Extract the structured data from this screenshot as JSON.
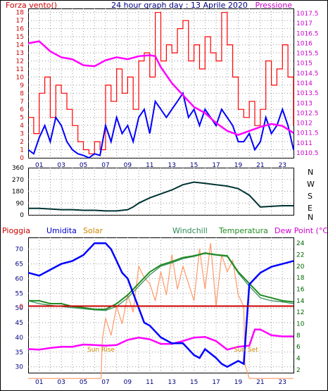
{
  "panel1": {
    "left_label": "Forza vento()",
    "title": "24 hour graph day : 13 Aprile 2020",
    "right_label": "Pressione"
  },
  "panel2": {
    "compass": [
      "N",
      "W",
      "S",
      "E",
      "N"
    ]
  },
  "panel3": {
    "labels": {
      "rain": "Pioggia",
      "hum": "Umidita",
      "solar": "Solar",
      "wc": "Windchill",
      "temp": "Temperatura",
      "dew": "Dew Point (°C)"
    },
    "rain_value": "0",
    "sunrise": "Sun Rise",
    "sunset": "Sun Set"
  },
  "colors": {
    "wind": "#ff0000",
    "gust": "#ff0000",
    "windavg": "#0000ff",
    "pressure": "#ff00ff",
    "direction": "#003333",
    "humidity": "#0000ff",
    "temperature": "#228b22",
    "windchill": "#2e8b57",
    "dewpoint": "#ff00ff",
    "solar": "#ff9966",
    "rain": "#cc0000"
  },
  "chart_data": [
    {
      "type": "line",
      "x_ticks": [
        "01",
        "03",
        "05",
        "07",
        "09",
        "11",
        "13",
        "15",
        "17",
        "19",
        "21",
        "23"
      ],
      "left_ticks": [
        "0",
        "1",
        "2",
        "3",
        "4",
        "5",
        "6",
        "7",
        "8",
        "9",
        "10",
        "11",
        "12",
        "13",
        "14",
        "15",
        "16",
        "17",
        "18"
      ],
      "right_ticks": [
        "1010.5",
        "1011",
        "1011.5",
        "1012",
        "1012.5",
        "1013",
        "1013.5",
        "1014",
        "1014.5",
        "1015",
        "1015.5",
        "1016",
        "1016.5",
        "1017",
        "1017.5"
      ],
      "ylim_left": [
        0,
        18.5
      ],
      "ylim_right": [
        1010.25,
        1017.75
      ],
      "series": [
        {
          "name": "Pressione",
          "axis": "right",
          "x": [
            0,
            1,
            2,
            3,
            4,
            5,
            6,
            7,
            8,
            9,
            10,
            11,
            11.5,
            12,
            13,
            14,
            15,
            16,
            17,
            18,
            19,
            20,
            21,
            22,
            23,
            24
          ],
          "values": [
            1016,
            1016.1,
            1015.6,
            1015.3,
            1015.2,
            1014.9,
            1014.85,
            1015.15,
            1015.3,
            1015.2,
            1015.35,
            1015.4,
            1015.35,
            1014.8,
            1014.0,
            1013.4,
            1012.8,
            1012.5,
            1012.0,
            1011.6,
            1011.4,
            1011.6,
            1011.8,
            1011.95,
            1011.85,
            1011.5
          ]
        },
        {
          "name": "Wind average",
          "axis": "left",
          "x": [
            0,
            0.5,
            1,
            1.5,
            2,
            2.5,
            3,
            3.5,
            4,
            4.5,
            5,
            5.5,
            6,
            6.5,
            7,
            7.5,
            8,
            8.5,
            9,
            9.5,
            10,
            10.5,
            11,
            11.5,
            12,
            12.5,
            13,
            13.5,
            14,
            14.5,
            15,
            15.5,
            16,
            16.5,
            17,
            17.5,
            18,
            18.5,
            19,
            19.5,
            20,
            20.5,
            21,
            21.5,
            22,
            22.5,
            23,
            23.5,
            24
          ],
          "values": [
            1,
            0.5,
            2.5,
            4,
            2,
            5,
            4,
            2,
            1,
            0.5,
            0.3,
            0,
            0.5,
            0.3,
            4,
            2,
            5,
            3,
            4,
            2,
            5,
            6,
            3,
            7,
            6,
            5,
            6,
            7,
            8,
            5,
            6,
            4,
            6,
            5,
            4,
            6,
            5,
            4,
            2,
            2,
            3,
            1,
            2,
            5,
            3,
            4,
            6,
            4,
            1
          ]
        },
        {
          "name": "Wind gust",
          "axis": "left",
          "x": [
            0,
            0.5,
            1,
            1.5,
            2,
            2.5,
            3,
            3.5,
            4,
            4.5,
            5,
            5.5,
            6,
            6.5,
            7,
            7.5,
            8,
            8.5,
            9,
            9.5,
            10,
            10.5,
            11,
            11.5,
            12,
            12.5,
            13,
            13.5,
            14,
            14.5,
            15,
            15.5,
            16,
            16.5,
            17,
            17.5,
            18,
            18.5,
            19,
            19.5,
            20,
            20.5,
            21,
            21.5,
            22,
            22.5,
            23,
            23.5,
            24
          ],
          "values": [
            5,
            3,
            8,
            10,
            5,
            9,
            8,
            6,
            4,
            2,
            1,
            0.5,
            2,
            1,
            9,
            7,
            11,
            8,
            10,
            6,
            12,
            13,
            10,
            18,
            12,
            14,
            13,
            16,
            17,
            12,
            14,
            11,
            15,
            13,
            12,
            18,
            14,
            10,
            6,
            5,
            7,
            4,
            6,
            12,
            9,
            11,
            14,
            10,
            4
          ]
        },
        {
          "name": "Wind direction",
          "axis": "direction",
          "ylim": [
            0,
            360
          ],
          "x": [
            0,
            1,
            2,
            3,
            4,
            5,
            6,
            7,
            8,
            9,
            9.5,
            10,
            11,
            12,
            13,
            14,
            15,
            16,
            17,
            18,
            19,
            20,
            21,
            22,
            23,
            24
          ],
          "values": [
            50,
            50,
            45,
            40,
            40,
            35,
            35,
            30,
            30,
            40,
            60,
            90,
            130,
            160,
            190,
            230,
            250,
            240,
            230,
            220,
            200,
            150,
            60,
            65,
            70,
            70
          ]
        }
      ]
    },
    {
      "type": "line",
      "x_ticks": [
        "01",
        "03",
        "05",
        "07",
        "09",
        "11",
        "13",
        "15",
        "17",
        "19",
        "21",
        "23"
      ],
      "left_ticks": [
        "30",
        "35",
        "40",
        "45",
        "50",
        "55",
        "60",
        "65",
        "70"
      ],
      "right_ticks": [
        "2",
        "4",
        "6",
        "8",
        "10",
        "12",
        "14",
        "16",
        "18",
        "20",
        "22",
        "24"
      ],
      "ylim_left": [
        28,
        74
      ],
      "ylim_right": [
        1.5,
        25
      ],
      "series": [
        {
          "name": "Umidita",
          "axis": "left",
          "x": [
            0,
            1,
            2,
            3,
            4,
            5,
            6,
            7,
            7.5,
            8,
            8.5,
            9,
            9.5,
            10,
            10.5,
            11,
            12,
            13,
            14,
            15,
            15.5,
            16,
            17,
            17.5,
            18,
            18.5,
            19,
            19.5,
            20,
            20.5,
            21,
            22,
            23,
            24
          ],
          "values": [
            62,
            61,
            63,
            65,
            66,
            68,
            72,
            72,
            70,
            66,
            62,
            60,
            55,
            50,
            45,
            44,
            40,
            38,
            38,
            34,
            33,
            36,
            33,
            31,
            30,
            31,
            32,
            31,
            58,
            60,
            62,
            64,
            65,
            66
          ]
        },
        {
          "name": "Temperatura",
          "axis": "right",
          "x": [
            0,
            1,
            2,
            3,
            4,
            5,
            6,
            7,
            8,
            9,
            10,
            11,
            12,
            13,
            14,
            15,
            16,
            17,
            18,
            19,
            20,
            21,
            22,
            23,
            24
          ],
          "values": [
            14,
            14,
            13.5,
            13.5,
            13,
            12.8,
            12.5,
            12.5,
            13.5,
            15,
            17,
            19,
            20.2,
            20.8,
            21.5,
            21.8,
            22.3,
            22,
            21.8,
            19,
            17,
            15,
            14.5,
            14,
            13.8
          ]
        },
        {
          "name": "Windchill",
          "axis": "right",
          "x": [
            0,
            1,
            2,
            3,
            4,
            5,
            6,
            7,
            8,
            9,
            10,
            11,
            12,
            13,
            14,
            15,
            16,
            17,
            18,
            19,
            20,
            21,
            22,
            23,
            24
          ],
          "values": [
            14,
            13.5,
            13.2,
            13,
            12.8,
            12.6,
            12.4,
            12.3,
            13,
            14.5,
            16.5,
            18.5,
            20,
            20.6,
            21.3,
            21.7,
            22.2,
            21.9,
            21.7,
            18.8,
            16.5,
            14.5,
            14,
            13.8,
            13.5
          ]
        },
        {
          "name": "Dew Point",
          "axis": "right",
          "x": [
            0,
            1,
            2,
            3,
            4,
            5,
            6,
            7,
            8,
            9,
            10,
            11,
            12,
            13,
            14,
            15,
            16,
            17,
            18,
            19,
            20,
            20.5,
            21,
            22,
            23,
            24
          ],
          "values": [
            5.6,
            5.5,
            5.8,
            6,
            6,
            6.4,
            6.3,
            6.2,
            6.3,
            7.2,
            7.6,
            7.3,
            6.5,
            6.5,
            7,
            7.6,
            7.7,
            7,
            5.5,
            6,
            6.2,
            9,
            9,
            8,
            7.8,
            7.8
          ]
        },
        {
          "name": "Solar",
          "axis": "right",
          "x": [
            0,
            6.6,
            6.7,
            7,
            7.5,
            8,
            8.5,
            9,
            9.5,
            10,
            10.5,
            11,
            11.5,
            12,
            12.5,
            13,
            13.5,
            14,
            14.5,
            15,
            15.5,
            16,
            16.5,
            17,
            17.5,
            18,
            18.5,
            19,
            19.5,
            19.6,
            20,
            24
          ],
          "values": [
            0.5,
            0.5,
            7,
            11,
            8,
            13,
            10,
            15,
            12,
            20,
            18,
            17,
            14,
            19,
            15,
            22,
            16,
            20,
            17,
            14,
            23,
            16,
            24,
            13,
            22,
            19,
            21,
            15,
            13,
            3,
            0.5,
            0.5
          ]
        }
      ]
    }
  ]
}
